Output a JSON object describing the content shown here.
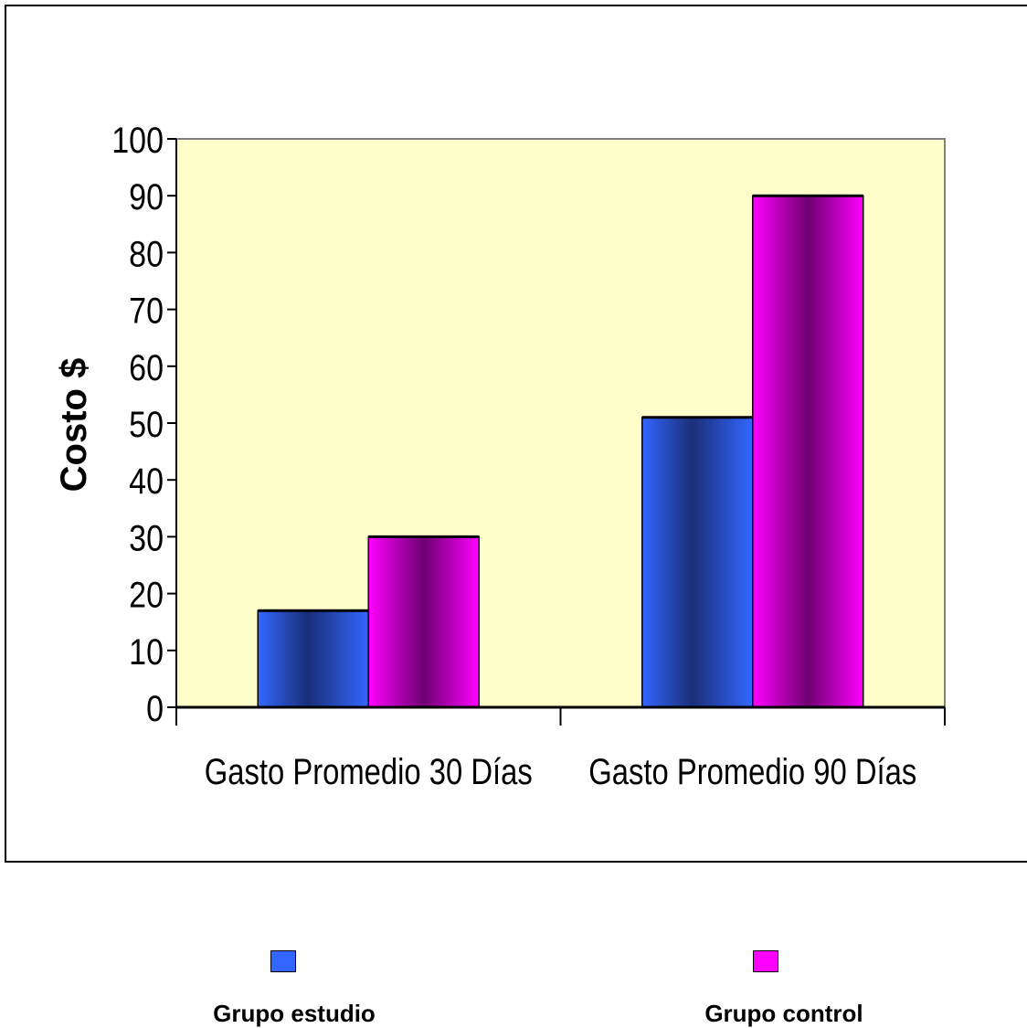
{
  "chart_data": {
    "type": "bar",
    "categories": [
      "Gasto Promedio 30 Días",
      "Gasto Promedio 90 Días"
    ],
    "series": [
      {
        "name": "Grupo estudio",
        "values": [
          17,
          51
        ],
        "color": "#2f5ff0"
      },
      {
        "name": "Grupo control",
        "values": [
          30,
          90
        ],
        "color": "#ff00ff"
      }
    ],
    "xlabel": "",
    "ylabel": "Costo $",
    "ylim": [
      0,
      100
    ],
    "yticks": [
      "0",
      "10",
      "20",
      "30",
      "40",
      "50",
      "60",
      "70",
      "80",
      "90",
      "100"
    ],
    "plot_background": "#ffffcc",
    "grid": false,
    "legend_position": "bottom"
  }
}
